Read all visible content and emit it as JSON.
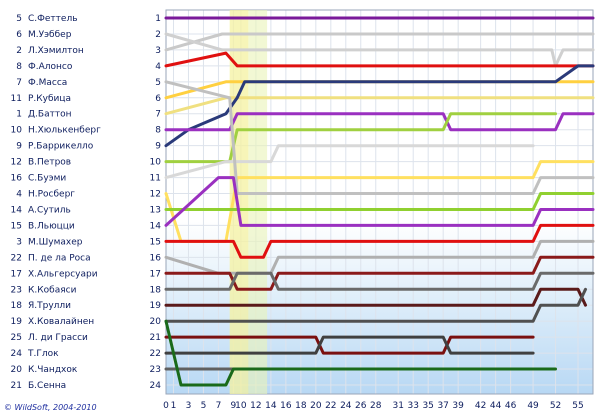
{
  "chart_data": {
    "type": "line",
    "title": "",
    "xlabel": "",
    "ylabel": "",
    "x_ticks": [
      0,
      1,
      3,
      5,
      7,
      9,
      10,
      12,
      14,
      16,
      18,
      20,
      22,
      24,
      26,
      28,
      31,
      33,
      35,
      37,
      39,
      42,
      44,
      46,
      49,
      52,
      55
    ],
    "y_ticks": [
      1,
      2,
      3,
      4,
      5,
      6,
      7,
      8,
      9,
      10,
      11,
      12,
      13,
      14,
      15,
      16,
      17,
      18,
      19,
      20,
      21,
      22,
      23,
      24
    ],
    "xlim": [
      0,
      57
    ],
    "ylim": [
      1,
      24
    ],
    "grid": true,
    "safety_car_laps": [
      8.5,
      11
    ],
    "drivers": [
      {
        "pos": 1,
        "num": "5",
        "name": "С.Феттель",
        "color": "#7a1a9a"
      },
      {
        "pos": 2,
        "num": "6",
        "name": "М.Уэббер",
        "color": "#c9c9c9"
      },
      {
        "pos": 3,
        "num": "2",
        "name": "Л.Хэмилтон",
        "color": "#d0d0d0"
      },
      {
        "pos": 4,
        "num": "8",
        "name": "Ф.Алонсо",
        "color": "#e01010"
      },
      {
        "pos": 5,
        "num": "7",
        "name": "Ф.Масса",
        "color": "#ffd040"
      },
      {
        "pos": 6,
        "num": "11",
        "name": "Р.Кубица",
        "color": "#f0e080"
      },
      {
        "pos": 7,
        "num": "1",
        "name": "Д.Баттон",
        "color": "#2a3a7a"
      },
      {
        "pos": 8,
        "num": "10",
        "name": "Н.Хюлькенберг",
        "color": "#9a30c0"
      },
      {
        "pos": 9,
        "num": "9",
        "name": "Р.Баррикелло",
        "color": "#a0d040"
      },
      {
        "pos": 10,
        "num": "12",
        "name": "В.Петров",
        "color": "#d8d8d8"
      },
      {
        "pos": 11,
        "num": "16",
        "name": "С.Буэми",
        "color": "#ffe060"
      },
      {
        "pos": 12,
        "num": "4",
        "name": "Н.Росберг",
        "color": "#c0c0c0"
      },
      {
        "pos": 13,
        "num": "14",
        "name": "А.Сутиль",
        "color": "#90d030"
      },
      {
        "pos": 14,
        "num": "15",
        "name": "В.Льюцци",
        "color": "#9a30c0"
      },
      {
        "pos": 15,
        "num": "3",
        "name": "М.Шумахер",
        "color": "#e01010"
      },
      {
        "pos": 16,
        "num": "22",
        "name": "П. де ла Роса",
        "color": "#b0b0b0"
      },
      {
        "pos": 17,
        "num": "17",
        "name": "Х.Альгерсуари",
        "color": "#8a1a1a"
      },
      {
        "pos": 18,
        "num": "23",
        "name": "К.Кобаяси",
        "color": "#6a6a6a"
      },
      {
        "pos": 19,
        "num": "18",
        "name": "Я.Трулли",
        "color": "#5a1a1a"
      },
      {
        "pos": 20,
        "num": "19",
        "name": "Х.Ковалайнен",
        "color": "#505050"
      },
      {
        "pos": 21,
        "num": "25",
        "name": "Л. ди Грасси",
        "color": "#7a1010"
      },
      {
        "pos": 22,
        "num": "24",
        "name": "Т.Глок",
        "color": "#404040"
      },
      {
        "pos": 23,
        "num": "20",
        "name": "К.Чандхок",
        "color": "#606060"
      },
      {
        "pos": 24,
        "num": "21",
        "name": "Б.Сенна",
        "color": "#1a6a1a"
      }
    ],
    "series": [
      {
        "color": "#7a1a9a",
        "points": [
          [
            0,
            1
          ],
          [
            57,
            1
          ]
        ]
      },
      {
        "color": "#c9c9c9",
        "points": [
          [
            0,
            3
          ],
          [
            7.5,
            2
          ],
          [
            57,
            2
          ]
        ]
      },
      {
        "color": "#d0d0d0",
        "points": [
          [
            0,
            2
          ],
          [
            7.5,
            3
          ],
          [
            51.5,
            3
          ],
          [
            52,
            4
          ],
          [
            53,
            3
          ],
          [
            57,
            3
          ]
        ]
      },
      {
        "color": "#e01010",
        "points": [
          [
            0,
            4
          ],
          [
            8,
            3.2
          ],
          [
            9.5,
            4
          ],
          [
            57,
            4
          ]
        ]
      },
      {
        "color": "#ffd040",
        "points": [
          [
            0,
            6
          ],
          [
            8,
            5
          ],
          [
            57,
            5
          ]
        ]
      },
      {
        "color": "#f0e080",
        "points": [
          [
            0,
            7
          ],
          [
            8,
            6
          ],
          [
            57,
            6
          ]
        ]
      },
      {
        "color": "#2a3a7a",
        "points": [
          [
            0,
            9
          ],
          [
            3,
            8
          ],
          [
            8,
            7
          ],
          [
            9.5,
            6
          ],
          [
            10.5,
            5
          ],
          [
            51.5,
            5
          ],
          [
            52,
            5
          ],
          [
            55,
            4
          ],
          [
            57,
            4
          ]
        ]
      },
      {
        "color": "#9a30c0",
        "points": [
          [
            0,
            8
          ],
          [
            8.5,
            8
          ],
          [
            9.5,
            7
          ],
          [
            37,
            7
          ],
          [
            38,
            8
          ],
          [
            52,
            8
          ],
          [
            53,
            7
          ],
          [
            57,
            7
          ]
        ]
      },
      {
        "color": "#a0d040",
        "points": [
          [
            0,
            10
          ],
          [
            8.5,
            10
          ],
          [
            9.5,
            8
          ],
          [
            37,
            8
          ],
          [
            38,
            7
          ],
          [
            52,
            7
          ]
        ]
      },
      {
        "color": "#d8d8d8",
        "points": [
          [
            0,
            11
          ],
          [
            8,
            10
          ],
          [
            14,
            10
          ],
          [
            15,
            9
          ],
          [
            49,
            9
          ]
        ]
      },
      {
        "color": "#ffe060",
        "points": [
          [
            0,
            12
          ],
          [
            2,
            15
          ],
          [
            8,
            15
          ],
          [
            9.5,
            11
          ],
          [
            49,
            11
          ],
          [
            50,
            10
          ],
          [
            57,
            10
          ]
        ]
      },
      {
        "color": "#c0c0c0",
        "points": [
          [
            0,
            5
          ],
          [
            8.5,
            6
          ],
          [
            9.5,
            12
          ],
          [
            49,
            12
          ],
          [
            50,
            11
          ],
          [
            57,
            11
          ]
        ]
      },
      {
        "color": "#90d030",
        "points": [
          [
            0,
            13
          ],
          [
            8.5,
            13
          ],
          [
            9.5,
            13
          ],
          [
            49,
            13
          ],
          [
            50,
            12
          ],
          [
            57,
            12
          ]
        ]
      },
      {
        "color": "#9a30c0",
        "points": [
          [
            0,
            14
          ],
          [
            7,
            11
          ],
          [
            9,
            11
          ],
          [
            10,
            14
          ],
          [
            49,
            14
          ],
          [
            50,
            13
          ],
          [
            57,
            13
          ]
        ]
      },
      {
        "color": "#e01010",
        "points": [
          [
            0,
            15
          ],
          [
            9,
            15
          ],
          [
            10,
            16
          ],
          [
            13,
            16
          ],
          [
            14,
            15
          ],
          [
            49,
            15
          ],
          [
            50,
            14
          ],
          [
            57,
            14
          ]
        ]
      },
      {
        "color": "#b0b0b0",
        "points": [
          [
            0,
            16
          ],
          [
            7,
            17
          ],
          [
            9,
            17
          ],
          [
            10,
            17
          ],
          [
            14,
            17
          ],
          [
            15,
            16
          ],
          [
            49,
            16
          ],
          [
            50,
            15
          ],
          [
            57,
            15
          ]
        ]
      },
      {
        "color": "#8a1a1a",
        "points": [
          [
            0,
            17
          ],
          [
            8.5,
            17
          ],
          [
            9.5,
            18
          ],
          [
            14,
            18
          ],
          [
            15,
            17
          ],
          [
            49,
            17
          ],
          [
            50,
            16
          ],
          [
            57,
            16
          ]
        ]
      },
      {
        "color": "#6a6a6a",
        "points": [
          [
            0,
            18
          ],
          [
            8.5,
            18
          ],
          [
            9.5,
            17
          ],
          [
            14,
            17
          ],
          [
            15,
            18
          ],
          [
            49,
            18
          ],
          [
            50,
            17
          ],
          [
            57,
            17
          ]
        ]
      },
      {
        "color": "#5a1a1a",
        "points": [
          [
            0,
            19
          ],
          [
            8.5,
            19
          ],
          [
            10,
            19
          ],
          [
            49,
            19
          ],
          [
            50,
            18
          ],
          [
            55,
            18
          ],
          [
            56,
            19
          ]
        ]
      },
      {
        "color": "#505050",
        "points": [
          [
            0,
            20
          ],
          [
            8.5,
            20
          ],
          [
            10,
            20
          ],
          [
            49,
            20
          ],
          [
            50,
            19
          ],
          [
            55,
            19
          ],
          [
            56,
            18
          ]
        ]
      },
      {
        "color": "#7a1010",
        "points": [
          [
            0,
            21
          ],
          [
            8.5,
            21
          ],
          [
            10,
            21
          ],
          [
            20,
            21
          ],
          [
            21,
            22
          ],
          [
            37,
            22
          ],
          [
            38,
            21
          ],
          [
            49,
            21
          ]
        ]
      },
      {
        "color": "#404040",
        "points": [
          [
            0,
            22
          ],
          [
            8.5,
            22
          ],
          [
            10,
            22
          ],
          [
            20,
            22
          ],
          [
            21,
            21
          ],
          [
            37,
            21
          ],
          [
            38,
            22
          ],
          [
            49,
            22
          ]
        ]
      },
      {
        "color": "#606060",
        "points": [
          [
            0,
            23
          ],
          [
            8.5,
            23
          ],
          [
            10,
            23
          ],
          [
            49,
            23
          ]
        ]
      },
      {
        "color": "#1a6a1a",
        "points": [
          [
            0,
            20
          ],
          [
            2,
            24
          ],
          [
            8,
            24
          ],
          [
            9,
            23
          ],
          [
            52,
            23
          ]
        ]
      }
    ]
  },
  "footer": {
    "copyright": "© WildSoft, 2004-2010"
  }
}
